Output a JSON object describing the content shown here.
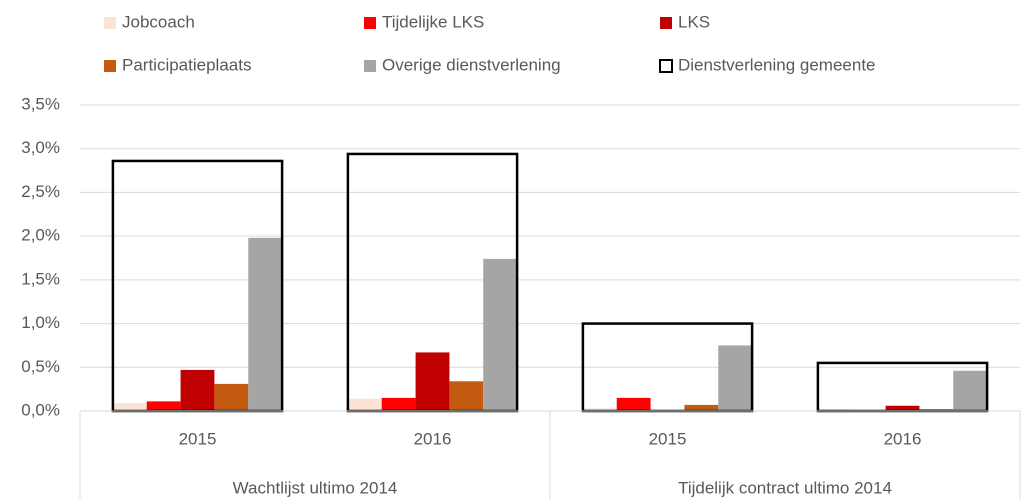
{
  "chart_data": {
    "type": "bar",
    "categories": [
      "2015",
      "2016",
      "2015",
      "2016"
    ],
    "category_groups": [
      "Wachtlijst ultimo 2014",
      "Tijdelijk contract ultimo 2014"
    ],
    "series": [
      {
        "name": "Jobcoach",
        "color": "#fbe3d6",
        "values": [
          0.09,
          0.14,
          0.03,
          0.02
        ]
      },
      {
        "name": "Tijdelijke LKS",
        "color": "#ff0000",
        "values": [
          0.11,
          0.15,
          0.15,
          0.0
        ]
      },
      {
        "name": "LKS",
        "color": "#c00000",
        "values": [
          0.47,
          0.67,
          0.01,
          0.06
        ]
      },
      {
        "name": "Participatieplaats",
        "color": "#c55a11",
        "values": [
          0.31,
          0.34,
          0.07,
          0.02
        ]
      },
      {
        "name": "Overige dienstverlening",
        "color": "#a5a5a5",
        "values": [
          1.98,
          1.74,
          0.75,
          0.46
        ]
      },
      {
        "name": "Dienstverlening gemeente",
        "color": "#000000",
        "outline": true,
        "values": [
          2.86,
          2.94,
          1.0,
          0.55
        ]
      }
    ],
    "ylim": [
      0,
      3.5
    ],
    "yticks": [
      {
        "value": 0,
        "label": "0,0%"
      },
      {
        "value": 0.5,
        "label": "0,5%"
      },
      {
        "value": 1,
        "label": "1,0%"
      },
      {
        "value": 1.5,
        "label": "1,5%"
      },
      {
        "value": 2,
        "label": "2,0%"
      },
      {
        "value": 2.5,
        "label": "2,5%"
      },
      {
        "value": 3,
        "label": "3,0%"
      },
      {
        "value": 3.5,
        "label": "3,5%"
      }
    ],
    "grid": true,
    "legend": "top"
  }
}
